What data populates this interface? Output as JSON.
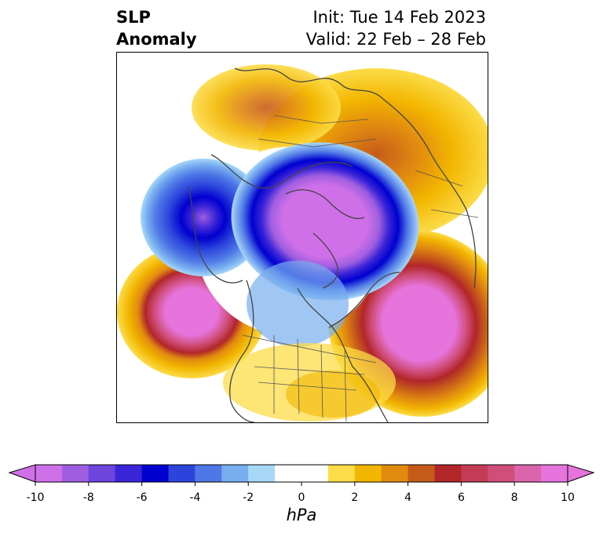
{
  "title": {
    "left_line1": "SLP",
    "left_line2": "Anomaly",
    "right_line1": "Init: Tue 14 Feb 2023",
    "right_line2": "Valid: 22 Feb – 28 Feb"
  },
  "colorbar": {
    "unit": "hPa",
    "min": -10,
    "max": 10,
    "step": 1,
    "tick_labels": [
      "-10",
      "-8",
      "-6",
      "-4",
      "-2",
      "0",
      "2",
      "4",
      "6",
      "8",
      "10"
    ],
    "colors": [
      "#d070e8",
      "#9f5ee0",
      "#6d44dc",
      "#3a24d8",
      "#0000d0",
      "#2c44dc",
      "#4f78e6",
      "#78aef0",
      "#a8d8f8",
      "#ffffff",
      "#ffffff",
      "#fcdc48",
      "#f2b600",
      "#e18a10",
      "#c65a1a",
      "#b2262a",
      "#c23c56",
      "#cf4e7a",
      "#dc64ac",
      "#e674dc"
    ],
    "extend": "both"
  },
  "map": {
    "projection": "north-polar-stereographic",
    "features": [
      "coastlines",
      "country-borders",
      "state-borders"
    ]
  }
}
